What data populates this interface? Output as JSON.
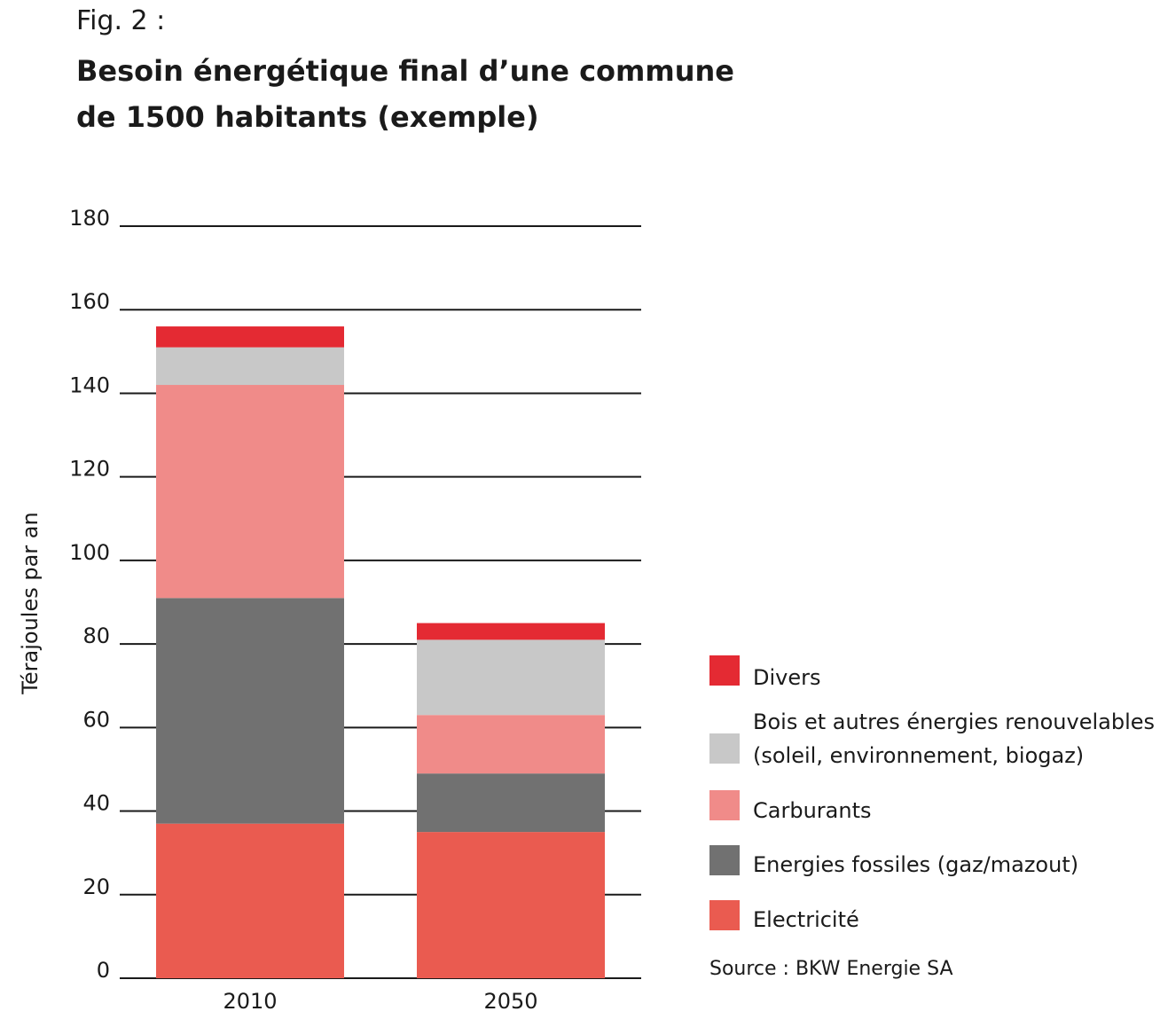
{
  "figure": {
    "label": "Fig. 2 :",
    "title_line1": "Besoin énergétique final d’une commune",
    "title_line2": "de 1500 habitants (exemple)",
    "source": "Source : BKW Energie SA"
  },
  "chart_data": {
    "type": "bar",
    "stacked": true,
    "categories": [
      "2010",
      "2050"
    ],
    "ylabel": "Térajoules par an",
    "ylim": [
      0,
      180
    ],
    "yticks": [
      "0",
      "20",
      "40",
      "60",
      "80",
      "100",
      "120",
      "140",
      "160",
      "180"
    ],
    "grid": true,
    "legend_position": "right",
    "series": [
      {
        "name": "Electricité",
        "values": [
          37,
          35
        ],
        "color": "#ea5b50"
      },
      {
        "name": "Energies fossiles (gaz/mazout)",
        "values": [
          54,
          14
        ],
        "color": "#717171"
      },
      {
        "name": "Carburants",
        "values": [
          51,
          14
        ],
        "color": "#f08b89"
      },
      {
        "name": "Bois et autres énergies renouvelables (soleil, environnement, biogaz)",
        "line1": "Bois et autres énergies renouvelables",
        "line2": "(soleil, environnement, biogaz)",
        "values": [
          9,
          18
        ],
        "color": "#c8c8c8"
      },
      {
        "name": "Divers",
        "values": [
          5,
          4
        ],
        "color": "#e42a33"
      }
    ]
  }
}
